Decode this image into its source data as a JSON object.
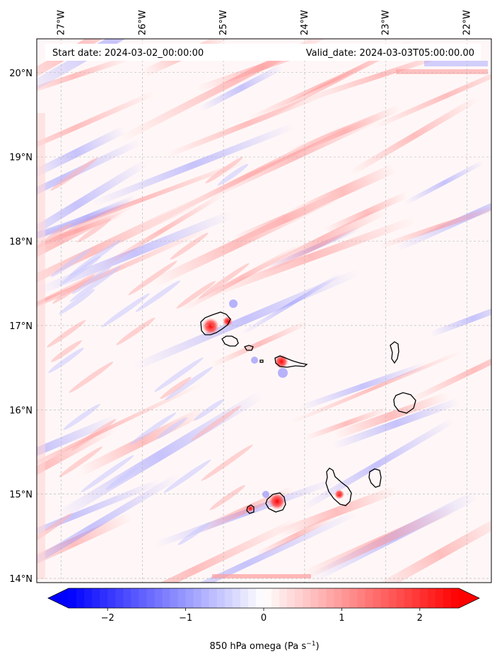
{
  "map": {
    "start_date_label": "Start date: 2024-03-02_00:00:00",
    "valid_date_label": "Valid_date: 2024-03-03T05:00:00.00",
    "lon_ticks": [
      {
        "value": -27,
        "label": "27°W"
      },
      {
        "value": -26,
        "label": "26°W"
      },
      {
        "value": -25,
        "label": "25°W"
      },
      {
        "value": -24,
        "label": "24°W"
      },
      {
        "value": -23,
        "label": "23°W"
      },
      {
        "value": -22,
        "label": "22°W"
      }
    ],
    "lat_ticks": [
      {
        "value": 20,
        "label": "20°N"
      },
      {
        "value": 19,
        "label": "19°N"
      },
      {
        "value": 18,
        "label": "18°N"
      },
      {
        "value": 17,
        "label": "17°N"
      },
      {
        "value": 16,
        "label": "16°N"
      },
      {
        "value": 15,
        "label": "15°N"
      },
      {
        "value": 14,
        "label": "14°N"
      }
    ],
    "lon_range": [
      -27.3,
      -21.7
    ],
    "lat_range": [
      13.95,
      20.4
    ],
    "gridlines": true
  },
  "colorbar": {
    "label_main": "850 hPa omega (Pa s",
    "label_sup": "−1",
    "label_close": ")",
    "ticks": [
      {
        "value": -2,
        "label": "−2"
      },
      {
        "value": -1,
        "label": "−1"
      },
      {
        "value": 0,
        "label": "0"
      },
      {
        "value": 1,
        "label": "1"
      },
      {
        "value": 2,
        "label": "2"
      }
    ],
    "range": [
      -2.5,
      2.5
    ],
    "extend": "both",
    "cmap": "bwr",
    "colors": {
      "low": "#0000ff",
      "mid": "#ffffff",
      "high": "#ff0000"
    }
  }
}
